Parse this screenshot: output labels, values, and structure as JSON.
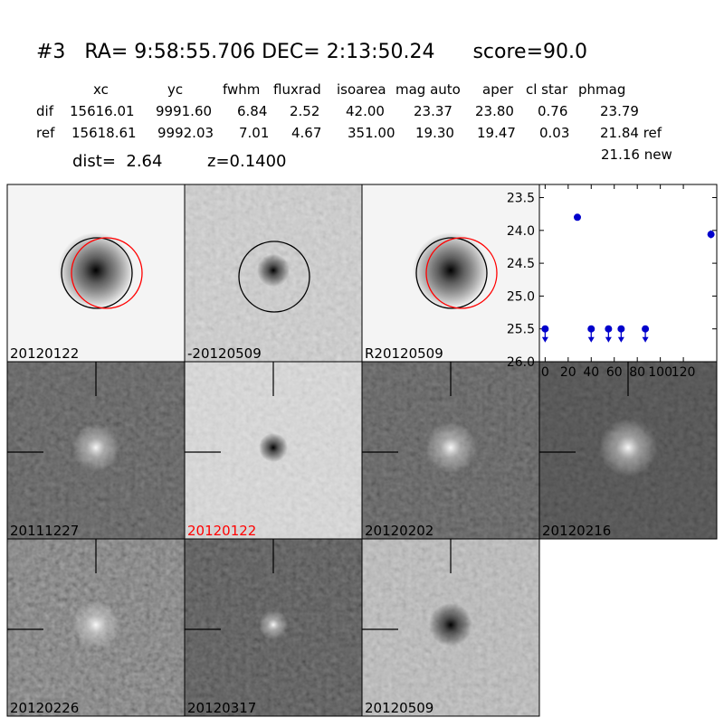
{
  "header": {
    "title": "#3   RA= 9:58:55.706 DEC= 2:13:50.24      score=90.0"
  },
  "table": {
    "columns": [
      "xc",
      "yc",
      "fwhm",
      "fluxrad",
      "isoarea",
      "mag auto",
      "aper",
      "cl star",
      "phmag"
    ],
    "rows": [
      [
        "dif",
        "15616.01",
        "9991.60",
        "6.84",
        "2.52",
        "42.00",
        "23.37",
        "23.80",
        "0.76",
        "23.79"
      ],
      [
        "ref",
        "15618.61",
        "9992.03",
        "7.01",
        "4.67",
        "351.00",
        "19.30",
        "19.47",
        "0.03",
        "21.84 ref"
      ]
    ],
    "note": "21.16 new"
  },
  "info": {
    "dist": "dist=  2.64",
    "z": "z=0.1400"
  },
  "panels": [
    {
      "label": "20120122"
    },
    {
      "label": "-20120509"
    },
    {
      "label": "R20120509"
    },
    {
      "label": "20111227"
    },
    {
      "label": "20120122",
      "label_color": "#ff0000"
    },
    {
      "label": "20120202"
    },
    {
      "label": "20120216"
    },
    {
      "label": "20120226"
    },
    {
      "label": "20120317"
    },
    {
      "label": "20120509"
    }
  ],
  "chart_data": {
    "type": "scatter",
    "xlim": [
      -5,
      149
    ],
    "ylim": [
      23.3,
      26.0
    ],
    "invert_y": true,
    "xticks": [
      0,
      20,
      40,
      60,
      80,
      100,
      120
    ],
    "yticks": [
      {
        "value": 23.5,
        "label": "23.5"
      },
      {
        "value": 24.0,
        "label": "24.0"
      },
      {
        "value": 24.5,
        "label": "24.5"
      },
      {
        "value": 25.0,
        "label": "25.0"
      },
      {
        "value": 25.5,
        "label": "25.5"
      },
      {
        "value": 26.0,
        "label": "26.0"
      }
    ],
    "color": "#0000cc",
    "detections": {
      "x": [
        28,
        144
      ],
      "values": [
        23.8,
        24.06
      ],
      "errors": [
        0.03,
        0.06
      ]
    },
    "upper_limits": {
      "x": [
        0,
        40,
        55,
        66,
        87
      ],
      "values": [
        25.5,
        25.5,
        25.5,
        25.5,
        25.5
      ]
    }
  }
}
